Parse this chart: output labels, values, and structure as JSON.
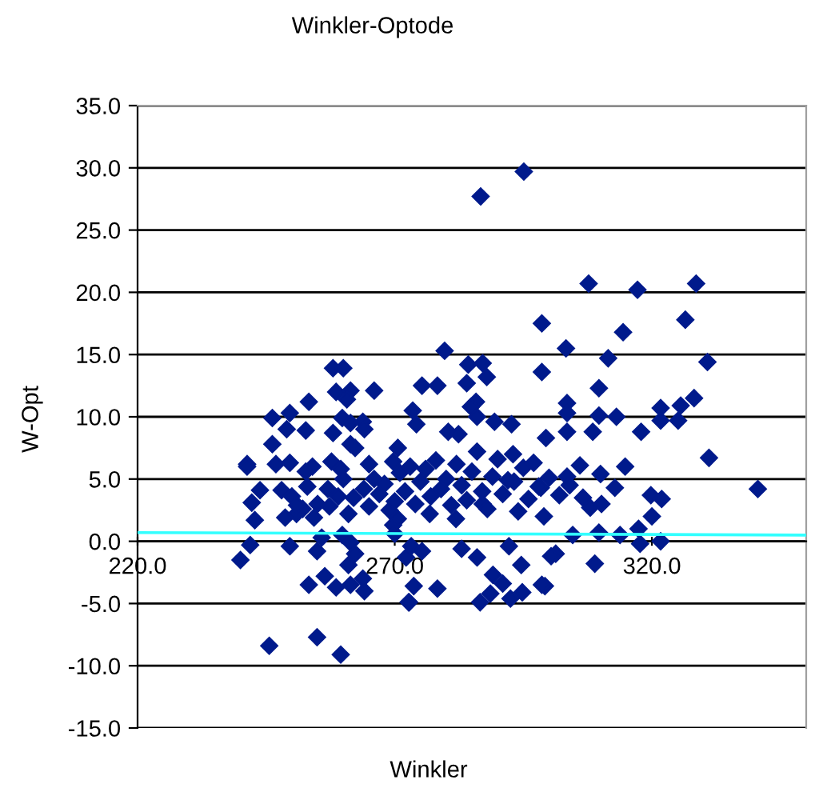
{
  "chart_data": {
    "type": "scatter",
    "title": "Winkler-Optode",
    "xlabel": "Winkler",
    "ylabel": "W-Opt",
    "xlim": [
      220,
      350
    ],
    "xticks": [
      {
        "value": 220,
        "label": "220.0"
      },
      {
        "value": 270,
        "label": "270.0"
      },
      {
        "value": 320,
        "label": "320.0"
      }
    ],
    "ylim": [
      -15,
      35
    ],
    "yticks": [
      {
        "value": -15,
        "label": "-15.0"
      },
      {
        "value": -10,
        "label": "-10.0"
      },
      {
        "value": -5,
        "label": "-5.0"
      },
      {
        "value": 0,
        "label": "0.0"
      },
      {
        "value": 5,
        "label": "5.0"
      },
      {
        "value": 10,
        "label": "10.0"
      },
      {
        "value": 15,
        "label": "15.0"
      },
      {
        "value": 20,
        "label": "20.0"
      },
      {
        "value": 25,
        "label": "25.0"
      },
      {
        "value": 30,
        "label": "30.0"
      },
      {
        "value": 35,
        "label": "35.0"
      }
    ],
    "grid": "y",
    "marker": "diamond",
    "legend": false,
    "series": [
      {
        "color": "#001a8c",
        "x": [
          241.3,
          246.2,
          246.2,
          249.6,
          249,
          253.3,
          252.7,
          258,
          260,
          258.6,
          261.4,
          260.7,
          266,
          259.8,
          261.4,
          263.8,
          264.1,
          258,
          261.4,
          262.3,
          257.7,
          259.5,
          246.9,
          249.6,
          254,
          270.6,
          265,
          269.7,
          241.3,
          242.2,
          243.8,
          242.8,
          241.9,
          240,
          248,
          248.7,
          249.6,
          245.6,
          254.9,
          259.5,
          253.3,
          256.4,
          258.6,
          261.4,
          254.9,
          255.8,
          259.8,
          261.4,
          262.3,
          261,
          264.1,
          263.8,
          252.1,
          252.7,
          250.9,
          254.3,
          257.3,
          269.7,
          270,
          272.2,
          272.8,
          286.7,
          295.1,
          307.7,
          317.2,
          328.6,
          326.5,
          330.8,
          298.6,
          303.3,
          314.4,
          311.5,
          298.6,
          279.7,
          284.3,
          287.1,
          287.9,
          284,
          275.3,
          278.3,
          309.7,
          285.8,
          284.8,
          273.5,
          303.5,
          303.5,
          309.7,
          313.1,
          321.7,
          325.6,
          328.2,
          321.7,
          325.1,
          286,
          289.4,
          292.7,
          303.5,
          308.5,
          317.9,
          299.4,
          331.1,
          274.2,
          280.4,
          282.4,
          340.6,
          319.8,
          321.9,
          320,
          317.4,
          317.7,
          321.7,
          313.8,
          308.9,
          301.3,
          300.4,
          299.2,
          298.6,
          294.6,
          294.8,
          292.5,
          291,
          288.6,
          286.6,
          289.1,
          286,
          278.3,
          272.7,
          273.7,
          275.3,
          273.2,
          283,
          292.2,
          304.6,
          309.7,
          314.8,
          312.8,
          310.2,
          306.6,
          303.5,
          298.4,
          293.2,
          287.1,
          281.9,
          276.8,
          270.6,
          262,
          264,
          265,
          266,
          267,
          268,
          269,
          270,
          271,
          272,
          273,
          274,
          275,
          276,
          277,
          278,
          279,
          280,
          281,
          282,
          283,
          284,
          285,
          286,
          287,
          288,
          289,
          290,
          291,
          292,
          293,
          294,
          295,
          296,
          297,
          298,
          299,
          300,
          302,
          304,
          306,
          308,
          310,
          255,
          257,
          259,
          260,
          261,
          253,
          250,
          251
        ],
        "values": [
          6.2,
          9.9,
          7.8,
          10.3,
          9.0,
          11.2,
          8.9,
          13.9,
          13.9,
          12.0,
          12.1,
          11.4,
          12.1,
          9.9,
          9.5,
          9.6,
          9.0,
          8.7,
          7.8,
          7.5,
          6.4,
          5.8,
          6.2,
          6.3,
          6.0,
          7.5,
          6.2,
          6.4,
          6.0,
          3.1,
          4.1,
          1.7,
          -0.3,
          -1.5,
          4.1,
          1.9,
          -0.4,
          -8.4,
          -7.7,
          -9.1,
          -3.5,
          -2.8,
          -3.7,
          -3.5,
          -0.8,
          0.3,
          0.5,
          -0.1,
          -1.0,
          -1.9,
          -4.0,
          -3.0,
          2.6,
          5.6,
          2.2,
          1.9,
          2.8,
          1.3,
          0.6,
          -1.3,
          -4.9,
          27.7,
          29.7,
          20.7,
          20.2,
          20.7,
          17.8,
          14.4,
          17.5,
          15.5,
          16.8,
          14.7,
          13.6,
          15.3,
          14.2,
          14.3,
          13.2,
          12.7,
          12.5,
          12.5,
          12.3,
          11.2,
          10.8,
          10.5,
          11.1,
          10.3,
          10.1,
          10.0,
          10.7,
          10.9,
          11.5,
          9.7,
          9.7,
          10.0,
          9.6,
          9.4,
          8.8,
          8.8,
          8.8,
          8.3,
          6.7,
          9.4,
          8.8,
          8.6,
          4.2,
          3.7,
          3.4,
          2.0,
          1.0,
          -0.2,
          0.0,
          0.5,
          -1.8,
          -1.0,
          -1.2,
          -3.6,
          -3.5,
          -1.9,
          -4.1,
          -4.6,
          -3.4,
          -4.2,
          -4.9,
          -2.7,
          -1.3,
          -3.8,
          -4.9,
          -3.6,
          -0.8,
          -0.4,
          -0.6,
          -0.4,
          0.5,
          0.7,
          6.0,
          4.3,
          3.0,
          3.5,
          5.2,
          4.3,
          4.8,
          3.0,
          1.8,
          2.2,
          1.8,
          3.5,
          4.2,
          2.8,
          5.0,
          3.8,
          4.6,
          2.5,
          3.2,
          5.5,
          4.0,
          6.0,
          3.0,
          4.8,
          5.8,
          3.6,
          6.5,
          4.2,
          5.0,
          2.9,
          6.2,
          4.5,
          3.3,
          5.6,
          7.2,
          4.0,
          2.6,
          5.2,
          6.6,
          3.8,
          4.9,
          7.0,
          2.4,
          5.9,
          3.4,
          6.3,
          4.4,
          2.0,
          5.1,
          3.7,
          4.5,
          6.1,
          2.7,
          5.4,
          3.0,
          4.2,
          3.6,
          5.0,
          2.2,
          4.4,
          3.6,
          2.9
        ]
      },
      {
        "type": "line",
        "color": "#33ffff",
        "marker": "none",
        "x": [
          220,
          350
        ],
        "values": [
          0.7,
          0.5
        ]
      }
    ]
  }
}
